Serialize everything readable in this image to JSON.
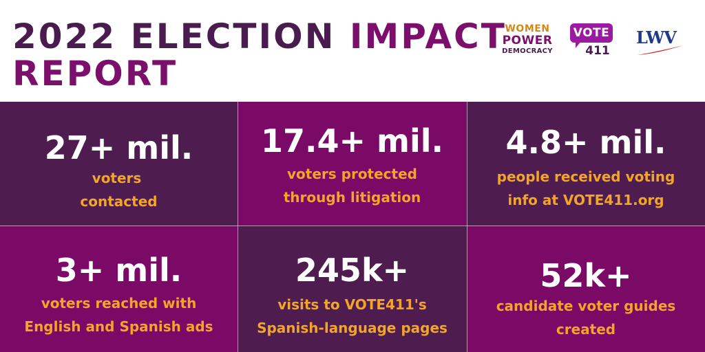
{
  "header": {
    "title_part1": "2022 ELECTION ",
    "title_accent": "IMPACT",
    "title_line2": "REPORT"
  },
  "logos": {
    "wpd": {
      "line1": "WOMEN",
      "line2": "POWER",
      "line3": "DEMOCRACY"
    },
    "vote411": {
      "line1": "VOTE",
      "line2": "411"
    },
    "lwv": {
      "text": "LWV"
    }
  },
  "colors": {
    "dark_purple": "#4f1c4f",
    "magenta": "#7b0a66",
    "gold": "#f2a623",
    "white": "#ffffff"
  },
  "stats": [
    {
      "value": "27+ mil.",
      "line1": "voters",
      "line2": "contacted"
    },
    {
      "value": "17.4+ mil.",
      "line1": "voters protected",
      "line2": "through litigation"
    },
    {
      "value": "4.8+ mil.",
      "line1": "people received voting",
      "line2": "info at VOTE411.org"
    },
    {
      "value": "3+ mil.",
      "line1": "voters reached with",
      "line2": "English and Spanish ads"
    },
    {
      "value": "245k+",
      "line1": "visits to VOTE411's",
      "line2": "Spanish-language pages"
    },
    {
      "value": "52k+",
      "line1": "candidate voter guides",
      "line2": "created"
    }
  ]
}
